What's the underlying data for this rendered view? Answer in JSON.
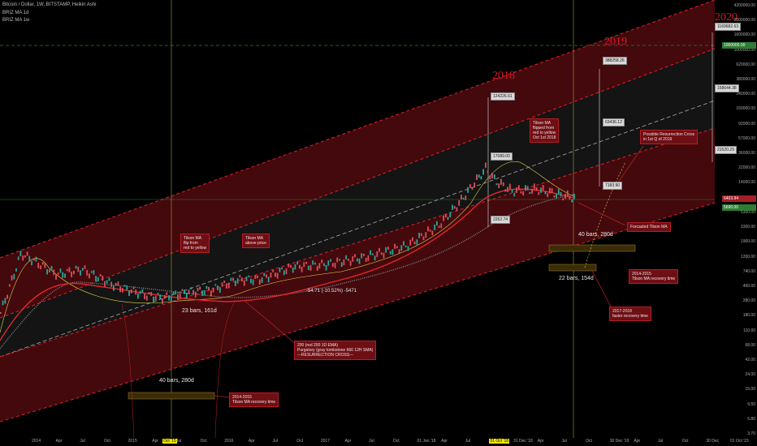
{
  "header": {
    "symbol_line": "Bitcoin / Dollar, 1W, BITSTAMP, Heikin Ashi",
    "study1": "BRIZ MA 1d",
    "study2": "BRIZ MA 1w"
  },
  "year_labels": [
    "2018",
    "2019",
    "2020"
  ],
  "annotations": {
    "tilson_flip": "Tilson MA\nflip from\nred to yellow",
    "tilson_above": "Tilson MA\nabove price",
    "ema200": "200 (red 200 1D EMA)\nPurgatory (gray tombstone 666 12H SMA)\n---RESURRECTION CROSS---",
    "tilson_flipped": "Tilson MA\nflipped from\nred to yellow\nOct 1st 2018",
    "resurrection": "Possible Resurrection Cross\nin 1st Q of 2019",
    "forecast": "Forcasted Tilson MA",
    "recovery_2014_right": "2014-2015\nTilson MA recovery time",
    "recovery_2017": "2017-2018\nfaster recovery time",
    "recovery_2014_left": "2014-2015\nTilson MA recovery time"
  },
  "price_tags": {
    "p1": "124226.61",
    "p2": "17089.00",
    "p3": "2262.74",
    "p4": "388258.26",
    "p5": "63436.12",
    "p6": "7183.90",
    "p7": "1169682.63",
    "p8": "158644.38",
    "p9": "21520.29"
  },
  "measure_labels": {
    "m1": "23 bars, 161d",
    "m2": "40 bars, 280d",
    "m3": "40 bars, 280d",
    "m4": "22 bars, 154d",
    "m5": "-54.71 (-10.52%) -5471"
  },
  "price_labels": {
    "current": "6403.94",
    "green": "1000000.00",
    "green2": "5690.00"
  },
  "colors": {
    "channel_red": "#e0202a",
    "channel_fill": "#5a0b10",
    "ema": "#e3262c",
    "sma": "#8a8a8a",
    "tilson": "#e6d84a",
    "bull": "#26a69a",
    "bear": "#d8505a",
    "level_green": "#2e7d32"
  },
  "chart_data": {
    "type": "line",
    "title": "Bitcoin / Dollar, 1W, BITSTAMP, Heikin Ashi",
    "yscale": "log",
    "ylim": [
      2.7,
      4200000
    ],
    "y_ticks": [
      "4200000.00",
      "2600000.00",
      "1600000.00",
      "1000000.00",
      "620000.00",
      "380000.00",
      "240000.00",
      "150000.00",
      "92000.00",
      "57000.00",
      "36000.00",
      "22000.00",
      "14000.00",
      "8500.00",
      "5300.00",
      "3300.00",
      "1900.00",
      "1200.00",
      "740.00",
      "460.00",
      "280.00",
      "180.00",
      "110.00",
      "68.00",
      "42.00",
      "24.00",
      "15.00",
      "9.50",
      "5.80",
      "3.70"
    ],
    "x_ticks": [
      "2014",
      "Apr",
      "Jul",
      "Oct",
      "2015",
      "Apr",
      "Jul",
      "Oct",
      "2016",
      "Apr",
      "Jul",
      "Oct",
      "2017",
      "Apr",
      "Jul",
      "Oct",
      "01 Jan '18",
      "Apr",
      "Jul",
      "01 Oct '18",
      "31 Dec '18",
      "Apr",
      "Jul",
      "Oct",
      "30 Dec '19",
      "Apr",
      "Jul",
      "Oct",
      "30 Dec",
      "01 Oct '23"
    ],
    "highlighted_x": [
      "Oct '15",
      "01 Oct '18"
    ],
    "series": [
      {
        "name": "BRIZ MA 1d",
        "x": [
          "2013-10",
          "2014-01",
          "2014-07",
          "2015-01",
          "2015-07",
          "2016-01",
          "2016-07",
          "2017-01",
          "2017-07",
          "2018-01",
          "2018-07",
          "2018-10"
        ],
        "values": [
          120,
          600,
          560,
          320,
          250,
          260,
          500,
          750,
          1900,
          9500,
          7500,
          6500
        ]
      },
      {
        "name": "BRIZ MA 1w",
        "x": [
          "2013-10",
          "2014-01",
          "2014-07",
          "2015-01",
          "2015-07",
          "2016-01",
          "2016-07",
          "2017-01",
          "2017-07",
          "2018-01",
          "2018-07",
          "2018-10"
        ],
        "values": [
          90,
          420,
          480,
          380,
          280,
          250,
          420,
          620,
          1200,
          5200,
          6800,
          6600
        ]
      },
      {
        "x": [
          "2013-10",
          "2013-12",
          "2014-01",
          "2014-04",
          "2014-07",
          "2014-10",
          "2015-01",
          "2015-04",
          "2015-07",
          "2015-10",
          "2016-01",
          "2016-04",
          "2016-07",
          "2016-10",
          "2017-01",
          "2017-04",
          "2017-07",
          "2017-10",
          "2017-12",
          "2018-01",
          "2018-02",
          "2018-04",
          "2018-07",
          "2018-10"
        ],
        "values": [
          140,
          1000,
          800,
          500,
          600,
          350,
          250,
          230,
          280,
          300,
          420,
          430,
          650,
          700,
          900,
          1300,
          2600,
          5500,
          17089,
          11000,
          8000,
          8500,
          7000,
          6400
        ]
      }
    ]
  }
}
